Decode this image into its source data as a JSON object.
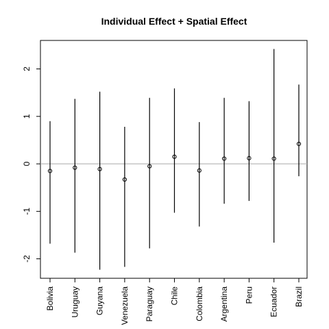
{
  "chart_data": {
    "type": "scatter",
    "title": "Individual Effect + Spatial Effect",
    "xlabel": "",
    "ylabel": "",
    "categories": [
      "Bolivia",
      "Uruguay",
      "Guyana",
      "Venezuela",
      "Paraguay",
      "Chile",
      "Colombia",
      "Argentina",
      "Peru",
      "Ecuador",
      "Brazil"
    ],
    "series": [
      {
        "values": [
          -0.15,
          -0.08,
          -0.11,
          -0.33,
          -0.05,
          0.15,
          -0.14,
          0.11,
          0.12,
          0.11,
          0.42
        ],
        "lower": [
          -1.68,
          -1.87,
          -2.23,
          -2.17,
          -1.78,
          -1.03,
          -1.32,
          -0.84,
          -0.78,
          -1.66,
          -0.26
        ],
        "upper": [
          0.9,
          1.37,
          1.52,
          0.78,
          1.39,
          1.59,
          0.88,
          1.39,
          1.32,
          2.42,
          1.67
        ]
      }
    ],
    "yticks": [
      -2,
      -1,
      0,
      1,
      2
    ],
    "ylim": [
      -2.41,
      2.6
    ],
    "reference_line": 0,
    "reference_line_color": "#b0b0b0",
    "grid": false,
    "legend": "none"
  }
}
